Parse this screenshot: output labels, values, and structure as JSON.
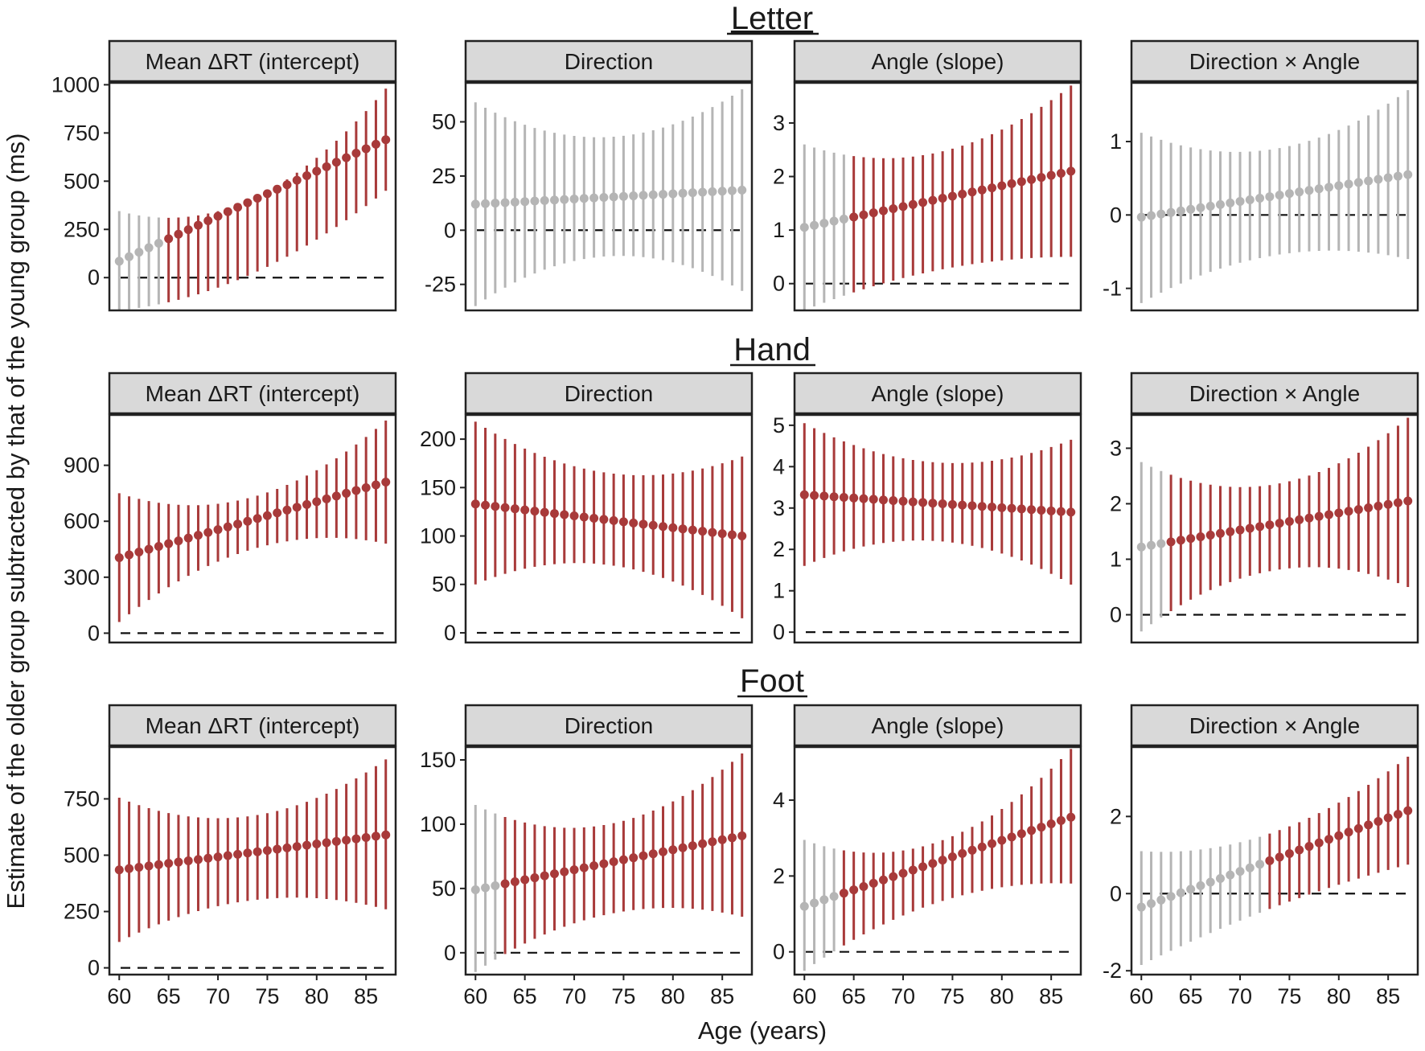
{
  "figure": {
    "ylabel": "Estimate of the older group subtracted by that of the young group (ms)",
    "xlabel": "Age (years)",
    "colors": {
      "significant": "#a83a3a",
      "nonsignificant": "#b5b5b5",
      "strip": "#d9d9d9",
      "frame": "#222222"
    }
  },
  "chart_data": [
    {
      "type": "scatter",
      "group": "Letter",
      "title": "Mean ΔRT (intercept)",
      "ylim": [
        -170,
        1010
      ],
      "yticks": [
        0,
        250,
        500,
        750,
        1000
      ],
      "yticklabels": [
        "0",
        "250",
        "500",
        "750",
        "1000"
      ],
      "xlim": [
        59,
        88
      ],
      "xticks": [
        60,
        65,
        70,
        75,
        80,
        85
      ],
      "xticklabels": [
        "60",
        "65",
        "70",
        "75",
        "80",
        "85"
      ],
      "age_start": 60,
      "age_end": 87,
      "est_start": 85,
      "est_end": 715,
      "lower_start": -170,
      "lower_mid": 20,
      "lower_end": 450,
      "upper_start": 345,
      "upper_mid": 410,
      "upper_end": 980,
      "sig_from": 65,
      "sig_to": 87
    },
    {
      "type": "scatter",
      "group": "Letter",
      "title": "Direction",
      "ylim": [
        -37,
        68
      ],
      "yticks": [
        -25,
        0,
        25,
        50
      ],
      "yticklabels": [
        "-25",
        "0",
        "25",
        "50"
      ],
      "xlim": [
        59,
        88
      ],
      "xticks": [
        60,
        65,
        70,
        75,
        80,
        85
      ],
      "xticklabels": [
        "60",
        "65",
        "70",
        "75",
        "80",
        "85"
      ],
      "age_start": 60,
      "age_end": 87,
      "est_start": 12,
      "est_end": 18.5,
      "lower_start": -35,
      "lower_mid": -12,
      "lower_end": -28,
      "upper_start": 59,
      "upper_mid": 43,
      "upper_end": 65,
      "sig_from": null,
      "sig_to": null
    },
    {
      "type": "scatter",
      "group": "Letter",
      "title": "Angle (slope)",
      "ylim": [
        -0.5,
        3.75
      ],
      "yticks": [
        0,
        1,
        2,
        3
      ],
      "yticklabels": [
        "0",
        "1",
        "2",
        "3"
      ],
      "xlim": [
        59,
        88
      ],
      "xticks": [
        60,
        65,
        70,
        75,
        80,
        85
      ],
      "xticklabels": [
        "60",
        "65",
        "70",
        "75",
        "80",
        "85"
      ],
      "age_start": 60,
      "age_end": 87,
      "est_start": 1.05,
      "est_end": 2.1,
      "lower_start": -0.5,
      "lower_mid": 0.25,
      "lower_end": 0.5,
      "upper_start": 2.6,
      "upper_mid": 2.45,
      "upper_end": 3.7,
      "sig_from": 65,
      "sig_to": 87
    },
    {
      "type": "scatter",
      "group": "Letter",
      "title": "Direction × Angle",
      "ylim": [
        -1.3,
        1.8
      ],
      "yticks": [
        -1,
        0,
        1
      ],
      "yticklabels": [
        "-1",
        "0",
        "1"
      ],
      "xlim": [
        59,
        88
      ],
      "xticks": [
        60,
        65,
        70,
        75,
        80,
        85
      ],
      "xticklabels": [
        "60",
        "65",
        "70",
        "75",
        "80",
        "85"
      ],
      "age_start": 60,
      "age_end": 87,
      "est_start": -0.03,
      "est_end": 0.55,
      "lower_start": -1.2,
      "lower_mid": -0.55,
      "lower_end": -0.6,
      "upper_start": 1.12,
      "upper_mid": 0.9,
      "upper_end": 1.7,
      "sig_from": null,
      "sig_to": null
    },
    {
      "type": "scatter",
      "group": "Hand",
      "title": "Mean ΔRT (intercept)",
      "ylim": [
        -50,
        1170
      ],
      "yticks": [
        0,
        300,
        600,
        900
      ],
      "yticklabels": [
        "0",
        "300",
        "600",
        "900"
      ],
      "xlim": [
        59,
        88
      ],
      "xticks": [
        60,
        65,
        70,
        75,
        80,
        85
      ],
      "xticklabels": [
        "60",
        "65",
        "70",
        "75",
        "80",
        "85"
      ],
      "age_start": 60,
      "age_end": 87,
      "est_start": 405,
      "est_end": 810,
      "lower_start": 60,
      "lower_mid": 450,
      "lower_end": 480,
      "upper_start": 750,
      "upper_mid": 730,
      "upper_end": 1140,
      "sig_from": 60,
      "sig_to": 87
    },
    {
      "type": "scatter",
      "group": "Hand",
      "title": "Direction",
      "ylim": [
        -10,
        225
      ],
      "yticks": [
        0,
        50,
        100,
        150,
        200
      ],
      "yticklabels": [
        "0",
        "50",
        "100",
        "150",
        "200"
      ],
      "xlim": [
        59,
        88
      ],
      "xticks": [
        60,
        65,
        70,
        75,
        80,
        85
      ],
      "xticklabels": [
        "60",
        "65",
        "70",
        "75",
        "80",
        "85"
      ],
      "age_start": 60,
      "age_end": 87,
      "est_start": 133,
      "est_end": 100,
      "lower_start": 50,
      "lower_mid": 70,
      "lower_end": 15,
      "upper_start": 218,
      "upper_mid": 165,
      "upper_end": 182,
      "sig_from": 60,
      "sig_to": 87
    },
    {
      "type": "scatter",
      "group": "Hand",
      "title": "Angle (slope)",
      "ylim": [
        -0.25,
        5.25
      ],
      "yticks": [
        0,
        1,
        2,
        3,
        4,
        5
      ],
      "yticklabels": [
        "0",
        "1",
        "2",
        "3",
        "4",
        "5"
      ],
      "xlim": [
        59,
        88
      ],
      "xticks": [
        60,
        65,
        70,
        75,
        80,
        85
      ],
      "xticklabels": [
        "60",
        "65",
        "70",
        "75",
        "80",
        "85"
      ],
      "age_start": 60,
      "age_end": 87,
      "est_start": 3.32,
      "est_end": 2.9,
      "lower_start": 1.6,
      "lower_mid": 2.2,
      "lower_end": 1.15,
      "upper_start": 5.05,
      "upper_mid": 4.1,
      "upper_end": 4.65,
      "sig_from": 60,
      "sig_to": 87
    },
    {
      "type": "scatter",
      "group": "Hand",
      "title": "Direction × Angle",
      "ylim": [
        -0.5,
        3.6
      ],
      "yticks": [
        0,
        1,
        2,
        3
      ],
      "yticklabels": [
        "0",
        "1",
        "2",
        "3"
      ],
      "xlim": [
        59,
        88
      ],
      "xticks": [
        60,
        65,
        70,
        75,
        80,
        85
      ],
      "xticklabels": [
        "60",
        "65",
        "70",
        "75",
        "80",
        "85"
      ],
      "age_start": 60,
      "age_end": 87,
      "est_start": 1.22,
      "est_end": 2.05,
      "lower_start": -0.3,
      "lower_mid": 0.8,
      "lower_end": 0.5,
      "upper_start": 2.75,
      "upper_mid": 2.35,
      "upper_end": 3.55,
      "sig_from": 63,
      "sig_to": 87
    },
    {
      "type": "scatter",
      "group": "Foot",
      "title": "Mean ΔRT (intercept)",
      "ylim": [
        -30,
        980
      ],
      "yticks": [
        0,
        250,
        500,
        750
      ],
      "yticklabels": [
        "0",
        "250",
        "500",
        "750"
      ],
      "xlim": [
        59,
        88
      ],
      "xticks": [
        60,
        65,
        70,
        75,
        80,
        85
      ],
      "xticklabels": [
        "60",
        "65",
        "70",
        "75",
        "80",
        "85"
      ],
      "age_start": 60,
      "age_end": 87,
      "est_start": 435,
      "est_end": 590,
      "lower_start": 115,
      "lower_mid": 300,
      "lower_end": 260,
      "upper_start": 755,
      "upper_mid": 675,
      "upper_end": 925,
      "sig_from": 60,
      "sig_to": 87
    },
    {
      "type": "scatter",
      "group": "Foot",
      "title": "Direction",
      "ylim": [
        -17,
        160
      ],
      "yticks": [
        0,
        50,
        100,
        150
      ],
      "yticklabels": [
        "0",
        "50",
        "100",
        "150"
      ],
      "xlim": [
        59,
        88
      ],
      "xticks": [
        60,
        65,
        70,
        75,
        80,
        85
      ],
      "xticklabels": [
        "60",
        "65",
        "70",
        "75",
        "80",
        "85"
      ],
      "age_start": 60,
      "age_end": 87,
      "est_start": 49,
      "est_end": 91,
      "lower_start": -15,
      "lower_mid": 30,
      "lower_end": 28,
      "upper_start": 115,
      "upper_mid": 100,
      "upper_end": 155,
      "sig_from": 63,
      "sig_to": 87
    },
    {
      "type": "scatter",
      "group": "Foot",
      "title": "Angle (slope)",
      "ylim": [
        -0.6,
        5.4
      ],
      "yticks": [
        0,
        2,
        4
      ],
      "yticklabels": [
        "0",
        "2",
        "4"
      ],
      "xlim": [
        59,
        88
      ],
      "xticks": [
        60,
        65,
        70,
        75,
        80,
        85
      ],
      "xticklabels": [
        "60",
        "65",
        "70",
        "75",
        "80",
        "85"
      ],
      "age_start": 60,
      "age_end": 87,
      "est_start": 1.2,
      "est_end": 3.55,
      "lower_start": -0.5,
      "lower_mid": 1.3,
      "lower_end": 1.8,
      "upper_start": 2.95,
      "upper_mid": 2.9,
      "upper_end": 5.35,
      "sig_from": 64,
      "sig_to": 87
    },
    {
      "type": "scatter",
      "group": "Foot",
      "title": "Direction × Angle",
      "ylim": [
        -2.1,
        3.8
      ],
      "yticks": [
        -2,
        0,
        2
      ],
      "yticklabels": [
        "-2",
        "0",
        "2"
      ],
      "xlim": [
        59,
        88
      ],
      "xticks": [
        60,
        65,
        70,
        75,
        80,
        85
      ],
      "xticklabels": [
        "60",
        "65",
        "70",
        "75",
        "80",
        "85"
      ],
      "age_start": 60,
      "age_end": 87,
      "est_start": -0.35,
      "est_end": 2.15,
      "lower_start": -1.85,
      "lower_mid": -0.35,
      "lower_end": 0.75,
      "upper_start": 1.1,
      "upper_mid": 1.6,
      "upper_end": 3.55,
      "sig_from": 73,
      "sig_to": 87
    }
  ]
}
